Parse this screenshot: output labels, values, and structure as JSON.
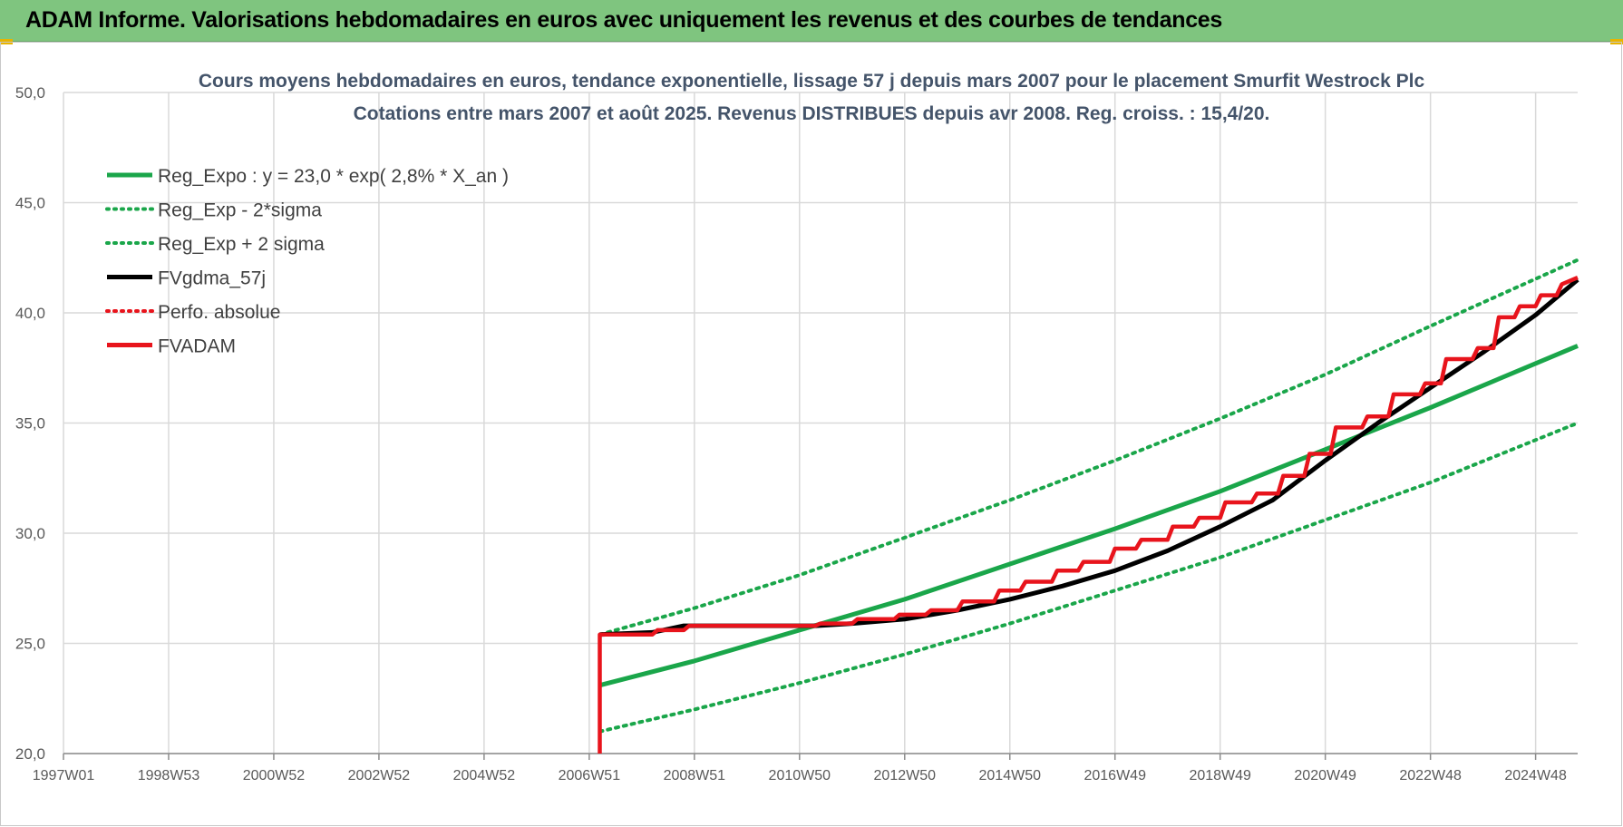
{
  "header": {
    "title": "ADAM Informe. Valorisations hebdomadaires en euros avec uniquement les revenus et des courbes de tendances"
  },
  "colors": {
    "header_bg": "#7fc57f",
    "trend": "#1aa64a",
    "fv": "#000000",
    "adam": "#e8141c"
  },
  "chart_data": {
    "type": "line",
    "title": "Cours moyens hebdomadaires en euros, tendance exponentielle, lissage 57 j depuis mars 2007 pour le placement Smurfit Westrock Plc",
    "subtitle": "Cotations entre mars 2007 et août 2025. Revenus DISTRIBUES depuis avr 2008. Reg. croiss. : 15,4/20.",
    "xlabel": "",
    "ylabel": "",
    "ylim": [
      20,
      50
    ],
    "yticks": [
      "20,0",
      "25,0",
      "30,0",
      "35,0",
      "40,0",
      "45,0",
      "50,0"
    ],
    "xlim": [
      1997.0,
      2025.8
    ],
    "xticks": [
      {
        "label": "1997W01",
        "x": 1997.0
      },
      {
        "label": "1998W53",
        "x": 1999.0
      },
      {
        "label": "2000W52",
        "x": 2001.0
      },
      {
        "label": "2002W52",
        "x": 2003.0
      },
      {
        "label": "2004W52",
        "x": 2005.0
      },
      {
        "label": "2006W51",
        "x": 2007.0
      },
      {
        "label": "2008W51",
        "x": 2009.0
      },
      {
        "label": "2010W50",
        "x": 2011.0
      },
      {
        "label": "2012W50",
        "x": 2013.0
      },
      {
        "label": "2014W50",
        "x": 2015.0
      },
      {
        "label": "2016W49",
        "x": 2017.0
      },
      {
        "label": "2018W49",
        "x": 2019.0
      },
      {
        "label": "2020W49",
        "x": 2021.0
      },
      {
        "label": "2022W48",
        "x": 2023.0
      },
      {
        "label": "2024W48",
        "x": 2025.0
      }
    ],
    "grid": true,
    "legend_position": "top-left",
    "series": [
      {
        "name": "Reg_Expo : y = 23,0 * exp( 2,8% *  X_an )",
        "color": "#1aa64a",
        "style": "solid",
        "x": [
          2007.2,
          2009,
          2011,
          2013,
          2015,
          2017,
          2019,
          2021,
          2023,
          2025.8
        ],
        "y": [
          23.1,
          24.2,
          25.6,
          27.0,
          28.6,
          30.2,
          31.9,
          33.8,
          35.7,
          38.5
        ]
      },
      {
        "name": "Reg_Exp - 2*sigma",
        "color": "#1aa64a",
        "style": "dotted",
        "x": [
          2007.2,
          2009,
          2011,
          2013,
          2015,
          2017,
          2019,
          2021,
          2023,
          2025.8
        ],
        "y": [
          21.0,
          22.0,
          23.2,
          24.5,
          25.9,
          27.4,
          28.9,
          30.6,
          32.3,
          35.0
        ]
      },
      {
        "name": "Reg_Exp + 2 sigma",
        "color": "#1aa64a",
        "style": "dotted",
        "x": [
          2007.2,
          2009,
          2011,
          2013,
          2015,
          2017,
          2019,
          2021,
          2023,
          2025.8
        ],
        "y": [
          25.4,
          26.6,
          28.1,
          29.8,
          31.5,
          33.3,
          35.2,
          37.2,
          39.4,
          42.4
        ]
      },
      {
        "name": "FVgdma_57j",
        "color": "#000000",
        "style": "solid",
        "x": [
          2007.2,
          2008.2,
          2008.8,
          2010.5,
          2011.3,
          2012.0,
          2013.0,
          2014.0,
          2015.0,
          2016.0,
          2017.0,
          2018.0,
          2019.0,
          2020.0,
          2021.0,
          2022.0,
          2023.0,
          2024.0,
          2025.0,
          2025.8
        ],
        "y": [
          25.4,
          25.5,
          25.8,
          25.8,
          25.8,
          25.9,
          26.1,
          26.5,
          27.0,
          27.6,
          28.3,
          29.2,
          30.3,
          31.5,
          33.3,
          35.0,
          36.6,
          38.2,
          39.9,
          41.5
        ]
      },
      {
        "name": "Perfo. absolue",
        "color": "#e8141c",
        "style": "dotted",
        "x": [],
        "y": []
      },
      {
        "name": "FVADAM",
        "color": "#e8141c",
        "style": "solid",
        "x": [
          2007.2,
          2007.2,
          2008.2,
          2008.3,
          2008.8,
          2008.9,
          2011.3,
          2011.4,
          2012.0,
          2012.1,
          2012.8,
          2012.9,
          2013.4,
          2013.5,
          2014.0,
          2014.1,
          2014.7,
          2014.8,
          2015.2,
          2015.3,
          2015.8,
          2015.9,
          2016.3,
          2016.4,
          2016.9,
          2017.0,
          2017.4,
          2017.5,
          2018.0,
          2018.1,
          2018.5,
          2018.6,
          2019.0,
          2019.1,
          2019.6,
          2019.7,
          2020.1,
          2020.2,
          2020.6,
          2020.7,
          2021.1,
          2021.2,
          2021.7,
          2021.8,
          2022.2,
          2022.3,
          2022.8,
          2022.9,
          2023.2,
          2023.3,
          2023.8,
          2023.9,
          2024.2,
          2024.3,
          2024.6,
          2024.7,
          2025.0,
          2025.1,
          2025.4,
          2025.5,
          2025.8
        ],
        "y": [
          20.0,
          25.4,
          25.4,
          25.6,
          25.6,
          25.8,
          25.8,
          25.9,
          25.9,
          26.1,
          26.1,
          26.3,
          26.3,
          26.5,
          26.5,
          26.9,
          26.9,
          27.4,
          27.4,
          27.8,
          27.8,
          28.3,
          28.3,
          28.7,
          28.7,
          29.3,
          29.3,
          29.7,
          29.7,
          30.3,
          30.3,
          30.7,
          30.7,
          31.4,
          31.4,
          31.8,
          31.8,
          32.6,
          32.6,
          33.6,
          33.6,
          34.8,
          34.8,
          35.3,
          35.3,
          36.3,
          36.3,
          36.8,
          36.8,
          37.9,
          37.9,
          38.4,
          38.4,
          39.8,
          39.8,
          40.3,
          40.3,
          40.8,
          40.8,
          41.3,
          41.6
        ]
      }
    ]
  }
}
